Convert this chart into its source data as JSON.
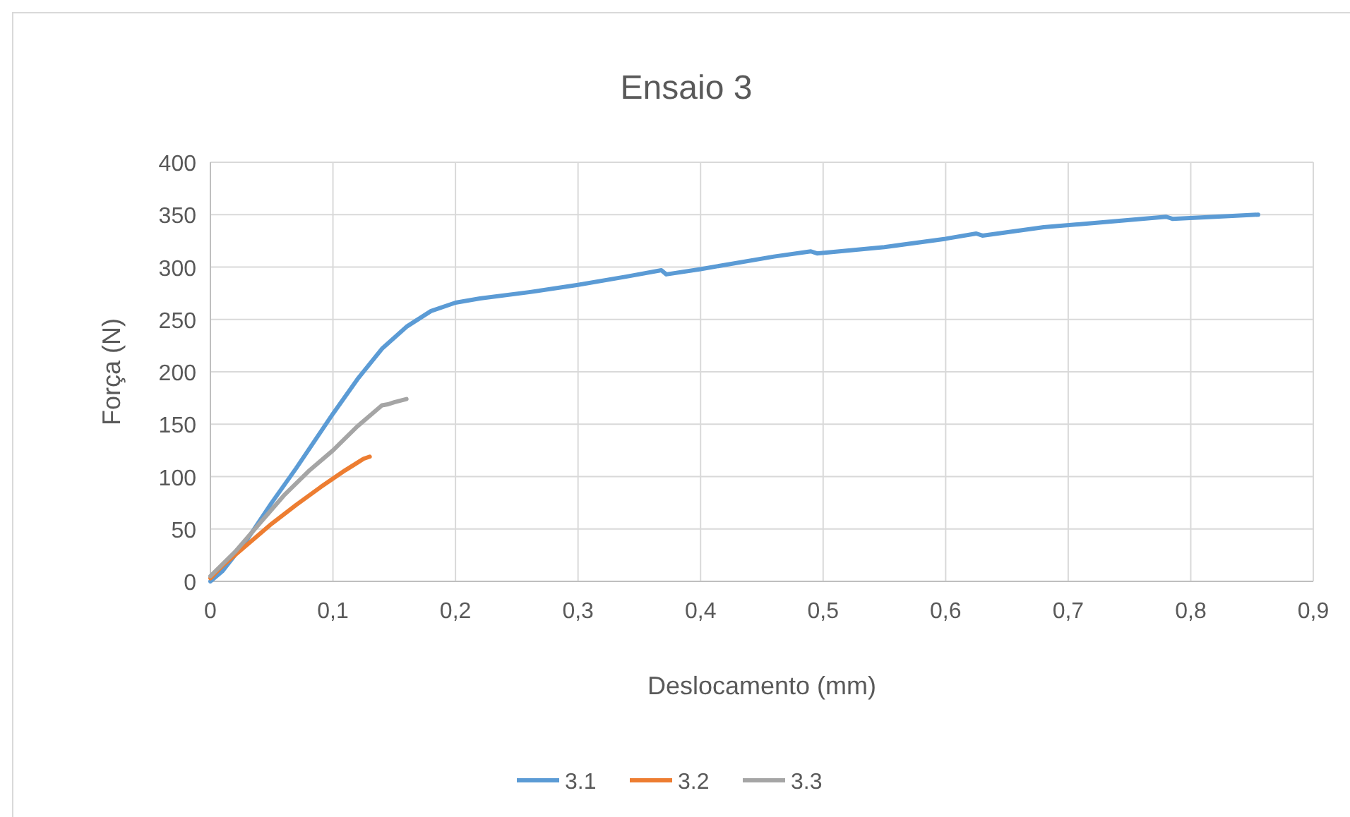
{
  "chart_data": {
    "type": "line",
    "title": "Ensaio 3",
    "xlabel": "Deslocamento (mm)",
    "ylabel": "Força (N)",
    "xlim": [
      0,
      0.9
    ],
    "ylim": [
      0,
      400
    ],
    "xticks": [
      {
        "value": 0,
        "label": "0"
      },
      {
        "value": 0.1,
        "label": "0,1"
      },
      {
        "value": 0.2,
        "label": "0,2"
      },
      {
        "value": 0.3,
        "label": "0,3"
      },
      {
        "value": 0.4,
        "label": "0,4"
      },
      {
        "value": 0.5,
        "label": "0,5"
      },
      {
        "value": 0.6,
        "label": "0,6"
      },
      {
        "value": 0.7,
        "label": "0,7"
      },
      {
        "value": 0.8,
        "label": "0,8"
      },
      {
        "value": 0.9,
        "label": "0,9"
      }
    ],
    "yticks": [
      0,
      50,
      100,
      150,
      200,
      250,
      300,
      350,
      400
    ],
    "grid": true,
    "legend": "bottom",
    "marker": "none",
    "line_style": "solid",
    "series": [
      {
        "name": "3.1",
        "color": "#5b9bd5",
        "x": [
          0,
          0.01,
          0.03,
          0.05,
          0.07,
          0.1,
          0.12,
          0.14,
          0.16,
          0.18,
          0.2,
          0.22,
          0.26,
          0.3,
          0.34,
          0.368,
          0.372,
          0.4,
          0.42,
          0.46,
          0.49,
          0.495,
          0.55,
          0.6,
          0.625,
          0.63,
          0.68,
          0.74,
          0.78,
          0.785,
          0.82,
          0.855
        ],
        "values": [
          0,
          10,
          40,
          75,
          108,
          160,
          193,
          222,
          243,
          258,
          266,
          270,
          276,
          283,
          291,
          297,
          293,
          298,
          302,
          310,
          315,
          313,
          319,
          327,
          332,
          330,
          338,
          344,
          348,
          346,
          348,
          350
        ]
      },
      {
        "name": "3.2",
        "color": "#ed7d31",
        "x": [
          0,
          0.01,
          0.03,
          0.05,
          0.07,
          0.09,
          0.11,
          0.125,
          0.13
        ],
        "values": [
          3,
          15,
          35,
          55,
          73,
          90,
          106,
          117,
          119
        ]
      },
      {
        "name": "3.3",
        "color": "#a5a5a5",
        "x": [
          0,
          0.02,
          0.04,
          0.06,
          0.08,
          0.1,
          0.12,
          0.14,
          0.145,
          0.15,
          0.16
        ],
        "values": [
          5,
          28,
          55,
          82,
          105,
          125,
          148,
          168,
          169,
          171,
          174
        ]
      }
    ]
  }
}
